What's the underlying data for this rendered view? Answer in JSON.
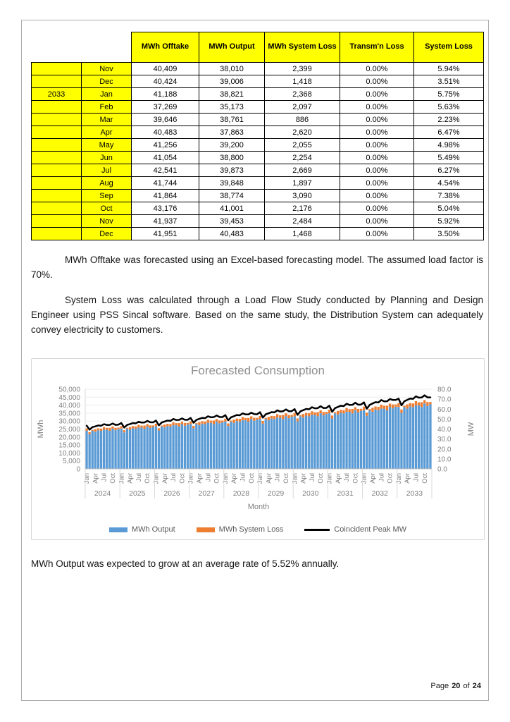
{
  "table": {
    "highlight_color": "#FFFF00",
    "headers": [
      "MWh Offtake",
      "MWh Output",
      "MWh System Loss",
      "Transm'n Loss",
      "System Loss"
    ],
    "rows": [
      {
        "year": "",
        "month": "Nov",
        "offtake": "40,409",
        "output": "38,010",
        "system_loss_mwh": "2,399",
        "transmission_loss": "0.00%",
        "system_loss_pct": "5.94%"
      },
      {
        "year": "",
        "month": "Dec",
        "offtake": "40,424",
        "output": "39,006",
        "system_loss_mwh": "1,418",
        "transmission_loss": "0.00%",
        "system_loss_pct": "3.51%"
      },
      {
        "year": "2033",
        "month": "Jan",
        "offtake": "41,188",
        "output": "38,821",
        "system_loss_mwh": "2,368",
        "transmission_loss": "0.00%",
        "system_loss_pct": "5.75%"
      },
      {
        "year": "",
        "month": "Feb",
        "offtake": "37,269",
        "output": "35,173",
        "system_loss_mwh": "2,097",
        "transmission_loss": "0.00%",
        "system_loss_pct": "5.63%"
      },
      {
        "year": "",
        "month": "Mar",
        "offtake": "39,646",
        "output": "38,761",
        "system_loss_mwh": "886",
        "transmission_loss": "0.00%",
        "system_loss_pct": "2.23%"
      },
      {
        "year": "",
        "month": "Apr",
        "offtake": "40,483",
        "output": "37,863",
        "system_loss_mwh": "2,620",
        "transmission_loss": "0.00%",
        "system_loss_pct": "6.47%"
      },
      {
        "year": "",
        "month": "May",
        "offtake": "41,256",
        "output": "39,200",
        "system_loss_mwh": "2,055",
        "transmission_loss": "0.00%",
        "system_loss_pct": "4.98%"
      },
      {
        "year": "",
        "month": "Jun",
        "offtake": "41,054",
        "output": "38,800",
        "system_loss_mwh": "2,254",
        "transmission_loss": "0.00%",
        "system_loss_pct": "5.49%"
      },
      {
        "year": "",
        "month": "Jul",
        "offtake": "42,541",
        "output": "39,873",
        "system_loss_mwh": "2,669",
        "transmission_loss": "0.00%",
        "system_loss_pct": "6.27%"
      },
      {
        "year": "",
        "month": "Aug",
        "offtake": "41,744",
        "output": "39,848",
        "system_loss_mwh": "1,897",
        "transmission_loss": "0.00%",
        "system_loss_pct": "4.54%"
      },
      {
        "year": "",
        "month": "Sep",
        "offtake": "41,864",
        "output": "38,774",
        "system_loss_mwh": "3,090",
        "transmission_loss": "0.00%",
        "system_loss_pct": "7.38%"
      },
      {
        "year": "",
        "month": "Oct",
        "offtake": "43,176",
        "output": "41,001",
        "system_loss_mwh": "2,176",
        "transmission_loss": "0.00%",
        "system_loss_pct": "5.04%"
      },
      {
        "year": "",
        "month": "Nov",
        "offtake": "41,937",
        "output": "39,453",
        "system_loss_mwh": "2,484",
        "transmission_loss": "0.00%",
        "system_loss_pct": "5.92%"
      },
      {
        "year": "",
        "month": "Dec",
        "offtake": "41,951",
        "output": "40,483",
        "system_loss_mwh": "1,468",
        "transmission_loss": "0.00%",
        "system_loss_pct": "3.50%"
      }
    ]
  },
  "paragraphs": {
    "p1": "MWh Offtake was forecasted using an Excel-based forecasting model. The assumed load factor is 70%.",
    "p2": "System Loss was calculated through a Load Flow Study conducted by Planning and Design Engineer using PSS Sincal software. Based on the same study, the Distribution System can adequately convey electricity to customers.",
    "p3": "MWh Output was expected to grow at an average rate of 5.52% annually."
  },
  "chart_data": {
    "type": "bar",
    "subtype": "stacked-columns-with-line-on-secondary-axis",
    "title": "Forecasted Consumption",
    "xlabel": "Month",
    "ylabel": "MWh",
    "ylabel_right": "MW",
    "grid": "horizontal",
    "legend_position": "bottom",
    "axes": {
      "left": {
        "min": 0,
        "max": 50000,
        "step": 5000,
        "title": "MWh"
      },
      "right": {
        "min": 0,
        "max": 80,
        "step": 10,
        "title": "MW"
      }
    },
    "x": {
      "years": [
        2024,
        2025,
        2026,
        2027,
        2028,
        2029,
        2030,
        2031,
        2032,
        2033
      ],
      "tick_months": [
        "Jan",
        "Apr",
        "Jul",
        "Oct"
      ],
      "months_per_year": 12
    },
    "series": [
      {
        "name": "MWh Output",
        "color": "#5B9BD5",
        "axis": "left",
        "render": "stacked-bar",
        "values": [
          23900,
          21700,
          23900,
          23300,
          24200,
          23900,
          24600,
          24600,
          23900,
          25300,
          24300,
          25000,
          25300,
          22900,
          25200,
          24600,
          25500,
          25200,
          25900,
          25900,
          25200,
          26700,
          25700,
          26300,
          26700,
          24100,
          26600,
          26000,
          26900,
          26600,
          27400,
          27400,
          26600,
          28100,
          27100,
          27800,
          28100,
          25500,
          28100,
          27400,
          28400,
          28100,
          28900,
          28900,
          28100,
          29700,
          28600,
          29300,
          29700,
          26900,
          29600,
          28900,
          30000,
          29700,
          30500,
          30500,
          29600,
          31300,
          30200,
          30900,
          31300,
          28400,
          31300,
          30500,
          31600,
          31300,
          32200,
          32100,
          31300,
          33100,
          31800,
          32700,
          33000,
          29900,
          33000,
          32200,
          33400,
          33000,
          33900,
          33900,
          33000,
          34900,
          33600,
          34500,
          34900,
          31600,
          34800,
          34000,
          35200,
          34800,
          35800,
          35800,
          34800,
          36800,
          35400,
          36400,
          36800,
          33300,
          36700,
          35900,
          37200,
          36800,
          37800,
          37800,
          36700,
          38900,
          38010,
          39006,
          38821,
          35173,
          38761,
          37863,
          39200,
          38800,
          39873,
          39848,
          38774,
          41001,
          39453,
          40483
        ]
      },
      {
        "name": "MWh System Loss",
        "color": "#ED7D31",
        "axis": "left",
        "render": "stacked-bar",
        "values": [
          1460,
          1290,
          550,
          1620,
          1270,
          1390,
          1650,
          1170,
          1910,
          1340,
          1530,
          910,
          1540,
          1360,
          580,
          1700,
          1340,
          1470,
          1740,
          1230,
          2010,
          1420,
          1620,
          960,
          1630,
          1440,
          610,
          1800,
          1410,
          1550,
          1830,
          1300,
          2120,
          1490,
          1710,
          1010,
          1720,
          1520,
          640,
          1900,
          1490,
          1630,
          1930,
          1370,
          2240,
          1580,
          1800,
          1060,
          1810,
          1600,
          680,
          2000,
          1570,
          1720,
          2040,
          1450,
          2360,
          1660,
          1900,
          1120,
          1910,
          1690,
          710,
          2110,
          1660,
          1820,
          2150,
          1530,
          2490,
          1760,
          2000,
          1180,
          2020,
          1780,
          750,
          2230,
          1750,
          1920,
          2270,
          1610,
          2630,
          1850,
          2110,
          1250,
          2130,
          1880,
          800,
          2350,
          1850,
          2020,
          2400,
          1700,
          2780,
          1950,
          2230,
          1320,
          2240,
          1990,
          840,
          2480,
          1950,
          2140,
          2530,
          1800,
          2930,
          2060,
          2399,
          1418,
          2368,
          2097,
          886,
          2620,
          2055,
          2254,
          2669,
          1897,
          3090,
          2176,
          2484,
          1468
        ]
      },
      {
        "name": "Coincident Peak MW",
        "color": "#000000",
        "axis": "right",
        "render": "line",
        "values": [
          43.4,
          39.4,
          41.9,
          42.7,
          43.6,
          43.3,
          44.9,
          44.1,
          44.2,
          45.6,
          44.2,
          44.4,
          46.0,
          41.5,
          44.1,
          45.0,
          46.0,
          45.7,
          47.3,
          46.5,
          46.6,
          48.2,
          46.8,
          46.7,
          48.5,
          43.7,
          46.6,
          47.6,
          48.5,
          48.2,
          50.1,
          49.1,
          49.2,
          50.7,
          49.3,
          49.3,
          51.1,
          46.3,
          49.2,
          50.2,
          51.2,
          50.9,
          52.8,
          51.8,
          52.0,
          53.6,
          52.1,
          52.0,
          54.0,
          48.8,
          51.8,
          52.9,
          54.1,
          53.8,
          55.7,
          54.7,
          54.7,
          56.4,
          55.0,
          54.8,
          56.9,
          51.5,
          54.8,
          55.8,
          57.0,
          56.7,
          58.8,
          57.6,
          57.9,
          59.7,
          57.9,
          58.0,
          60.0,
          54.2,
          57.8,
          59.0,
          60.2,
          59.8,
          61.9,
          60.8,
          61.0,
          62.9,
          61.1,
          61.2,
          63.4,
          57.3,
          61.0,
          62.2,
          63.4,
          63.0,
          65.4,
          64.2,
          64.3,
          66.4,
          64.4,
          64.6,
          66.8,
          60.4,
          64.3,
          65.7,
          67.0,
          66.7,
          69.1,
          67.8,
          67.9,
          70.1,
          69.2,
          69.2,
          70.5,
          63.8,
          67.9,
          69.3,
          70.6,
          70.3,
          72.8,
          71.5,
          71.7,
          73.9,
          71.8,
          71.8
        ]
      }
    ]
  },
  "footer": {
    "prefix": "Page",
    "current": "20",
    "of_label": "of",
    "total": "24"
  }
}
